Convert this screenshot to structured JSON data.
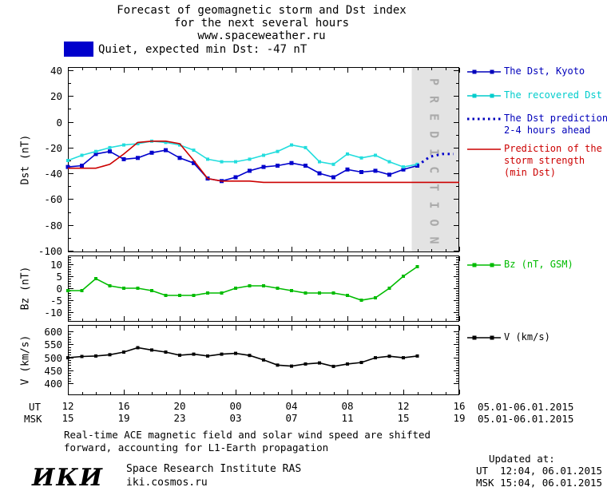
{
  "title": {
    "line1": "Forecast of geomagnetic storm and Dst index",
    "line2": "for the next several hours",
    "line3": "www.spaceweather.ru"
  },
  "status": {
    "swatch_color": "#0000cc",
    "text": "Quiet, expected min Dst: -47 nT"
  },
  "prediction_band": {
    "label": "P R E D I C T I O N",
    "fill": "#e3e3e3",
    "text_color": "#aaaaaa"
  },
  "legend_items": [
    {
      "id": "dst-kyoto",
      "lines": [
        "The Dst, Kyoto"
      ],
      "color": "#0000bb",
      "marker": "line-squares"
    },
    {
      "id": "recovered-dst",
      "lines": [
        "The recovered Dst"
      ],
      "color": "#00cccc",
      "marker": "line-squares"
    },
    {
      "id": "dst-prediction",
      "lines": [
        "The Dst prediction",
        "2-4 hours ahead"
      ],
      "color": "#0000bb",
      "marker": "dotted"
    },
    {
      "id": "storm-strength",
      "lines": [
        "Prediction of the",
        "storm strength",
        "(min Dst)"
      ],
      "color": "#cc0000",
      "marker": "line"
    },
    {
      "id": "bz",
      "lines": [
        "Bz (nT, GSM)"
      ],
      "color": "#00bb00",
      "marker": "line-squares"
    },
    {
      "id": "v",
      "lines": [
        "V (km/s)"
      ],
      "color": "#000000",
      "marker": "line-squares"
    }
  ],
  "xaxis": {
    "ut_row_label": "UT",
    "msk_row_label": "MSK",
    "x_tick_hours": [
      0,
      4,
      8,
      12,
      16,
      20,
      24,
      28
    ],
    "ut_ticks": [
      "12",
      "16",
      "20",
      "00",
      "04",
      "08",
      "12",
      "16"
    ],
    "msk_ticks": [
      "15",
      "19",
      "23",
      "03",
      "07",
      "11",
      "15",
      "19"
    ],
    "ut_date": "05.01-06.01.2015",
    "msk_date": "05.01-06.01.2015",
    "x_unit": "hours since 12:00 UT 05.01.2015"
  },
  "chart_data": [
    {
      "id": "dst",
      "type": "line",
      "ylabel": "Dst (nT)",
      "ylim": [
        -100,
        40
      ],
      "yticks": [
        40,
        20,
        0,
        -20,
        -40,
        -60,
        -80,
        -100
      ],
      "y_minor_step": 10,
      "xlim": [
        0,
        28
      ],
      "prediction_band": {
        "x_start": 24.6,
        "x_end": 28
      },
      "series": [
        {
          "id": "dst-kyoto",
          "name": "The Dst, Kyoto",
          "color": "#0000cc",
          "marker": true,
          "marker_size": 5,
          "values": [
            -35,
            -34,
            -25,
            -23,
            -29,
            -28,
            -24,
            -22,
            -28,
            -32,
            -44,
            -46,
            -43,
            -38,
            -35,
            -34,
            -32,
            -34,
            -40,
            -43,
            -37,
            -39,
            -38,
            -41,
            -37,
            -34
          ]
        },
        {
          "id": "recovered-dst",
          "name": "The recovered Dst",
          "color": "#22dddd",
          "marker": true,
          "marker_size": 4,
          "values": [
            -30,
            -26,
            -23,
            -20,
            -18,
            -17,
            -15,
            -16,
            -18,
            -22,
            -29,
            -31,
            -31,
            -29,
            -26,
            -23,
            -18,
            -20,
            -31,
            -33,
            -25,
            -28,
            -26,
            -31,
            -35,
            -33
          ]
        },
        {
          "id": "storm-strength-prediction",
          "name": "Prediction of the storm strength (min Dst)",
          "color": "#cc0000",
          "values": [
            -36,
            -36,
            -36,
            -33,
            -25,
            -16,
            -15,
            -15,
            -17,
            -30,
            -44,
            -46,
            -46,
            -46,
            -47,
            -47,
            -47,
            -47,
            -47,
            -47,
            -47,
            -47,
            -47,
            -47,
            -47,
            -47,
            -47,
            -47,
            -47
          ]
        },
        {
          "id": "dst-prediction",
          "name": "The Dst prediction 2-4 hours ahead",
          "color": "#0000cc",
          "dotted": true,
          "x": [
            25,
            25.9,
            26.8,
            27.6
          ],
          "values": [
            -34,
            -27,
            -25,
            -25
          ]
        }
      ]
    },
    {
      "id": "bz",
      "type": "line",
      "ylabel": "Bz (nT)",
      "ylim": [
        -14,
        13
      ],
      "yticks": [
        10,
        5,
        0,
        -5,
        -10
      ],
      "y_minor_step": 1,
      "xlim": [
        0,
        28
      ],
      "series": [
        {
          "id": "bz-gsm",
          "name": "Bz (nT, GSM)",
          "color": "#00bb00",
          "marker": true,
          "marker_size": 4,
          "values": [
            -1,
            -1,
            4,
            1,
            0,
            0,
            -1,
            -3,
            -3,
            -3,
            -2,
            -2,
            0,
            1,
            1,
            0,
            -1,
            -2,
            -2,
            -2,
            -3,
            -5,
            -4,
            0,
            5,
            9
          ]
        }
      ]
    },
    {
      "id": "v",
      "type": "line",
      "ylabel": "V (km/s)",
      "ylim": [
        400,
        600
      ],
      "yticks": [
        600,
        550,
        500,
        450,
        400
      ],
      "y_minor_step": 10,
      "xlim": [
        0,
        28
      ],
      "series": [
        {
          "id": "solar-wind-speed",
          "name": "V (km/s)",
          "color": "#000000",
          "marker": true,
          "marker_size": 4,
          "values": [
            498,
            503,
            505,
            510,
            520,
            537,
            528,
            520,
            508,
            512,
            505,
            512,
            515,
            507,
            490,
            470,
            466,
            474,
            478,
            465,
            474,
            480,
            498,
            504,
            498,
            505
          ]
        }
      ]
    }
  ],
  "footnote": {
    "line1": "Real-time ACE magnetic field and solar wind speed are shifted",
    "line2": "forward, accounting for L1-Earth propagation"
  },
  "footer": {
    "logo": "ИКИ",
    "institute": "Space Research Institute RAS",
    "site": "iki.cosmos.ru",
    "updated_label": "Updated at:",
    "updated_ut": "UT  12:04, 06.01.2015",
    "updated_msk": "MSK 15:04, 06.01.2015"
  }
}
